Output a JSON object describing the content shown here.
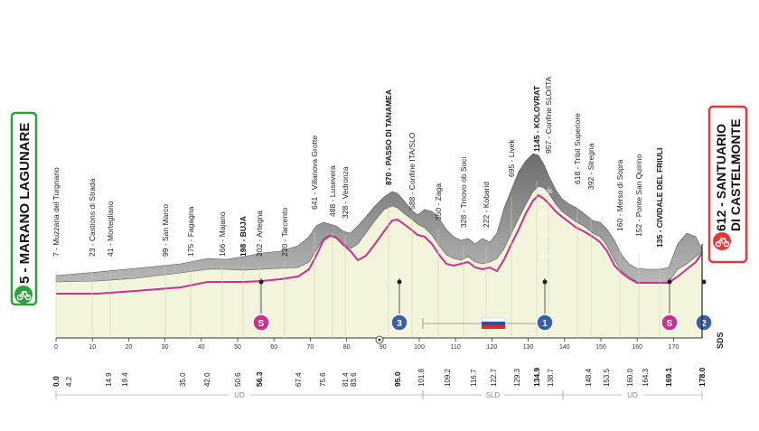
{
  "start": {
    "label": "5 - MARANO LAGUNARE",
    "color": "#2e9e3e"
  },
  "finish": {
    "label_line1": "612 - SANTUARIO",
    "label_line2": "DI CASTELMONTE",
    "color": "#e03a3a"
  },
  "waypoints": [
    {
      "text": "7 - Muzzana del Turgnano",
      "bold": false
    },
    {
      "text": "23 - Castions di Strada",
      "bold": false
    },
    {
      "text": "41 - Mortegliano",
      "bold": false
    },
    {
      "text": "99 - San Marco",
      "bold": false
    },
    {
      "text": "175 - Fagagna",
      "bold": false
    },
    {
      "text": "166 - Majano",
      "bold": false
    },
    {
      "text": "198 - BUJA",
      "bold": true
    },
    {
      "text": "202 - Artegna",
      "bold": false
    },
    {
      "text": "230 - Tarcento",
      "bold": false
    },
    {
      "text": "641 - Villanova Grotte",
      "bold": false
    },
    {
      "text": "488 - Lusevera",
      "bold": false
    },
    {
      "text": "328 - Vedronza",
      "bold": false
    },
    {
      "text": "870 - PASSO DI TANAMEA",
      "bold": true
    },
    {
      "text": "588 - Confine ITA/SLO",
      "bold": false
    },
    {
      "text": "350 - Zaga",
      "bold": false
    },
    {
      "text": "328 - Trnovo ob Soci",
      "bold": false
    },
    {
      "text": "222 - Kobarid",
      "bold": false
    },
    {
      "text": "695 - Livek",
      "bold": false
    },
    {
      "text": "1145 - KOLOVRAT",
      "bold": true
    },
    {
      "text": "957 - Confine SLO/ITA",
      "bold": false
    },
    {
      "text": "618 - Tribil Superiore",
      "bold": false
    },
    {
      "text": "392 - Stregna",
      "bold": false
    },
    {
      "text": "160 - Merso di Sopra",
      "bold": false
    },
    {
      "text": "152 - Ponte San Quirino",
      "bold": false
    },
    {
      "text": "135 - CIVIDALE DEL FRIULI",
      "bold": true
    }
  ],
  "km_labels": [
    {
      "text": "0.0",
      "bold": true
    },
    {
      "text": "4.2",
      "bold": false
    },
    {
      "text": "14.9",
      "bold": false
    },
    {
      "text": "19.4",
      "bold": false
    },
    {
      "text": "35.0",
      "bold": false
    },
    {
      "text": "42.0",
      "bold": false
    },
    {
      "text": "50.6",
      "bold": false
    },
    {
      "text": "56.3",
      "bold": true
    },
    {
      "text": "67.4",
      "bold": false
    },
    {
      "text": "75.6",
      "bold": false
    },
    {
      "text": "81.4",
      "bold": false
    },
    {
      "text": "83.6",
      "bold": false
    },
    {
      "text": "95.0",
      "bold": true
    },
    {
      "text": "101.8",
      "bold": false
    },
    {
      "text": "109.2",
      "bold": false
    },
    {
      "text": "116.7",
      "bold": false
    },
    {
      "text": "122.7",
      "bold": false
    },
    {
      "text": "129.3",
      "bold": false
    },
    {
      "text": "134.9",
      "bold": true
    },
    {
      "text": "138.7",
      "bold": false
    },
    {
      "text": "148.4",
      "bold": false
    },
    {
      "text": "153.5",
      "bold": false
    },
    {
      "text": "160.0",
      "bold": false
    },
    {
      "text": "164.3",
      "bold": false
    },
    {
      "text": "169.1",
      "bold": true
    },
    {
      "text": "178.0",
      "bold": true
    }
  ],
  "distance_axis": [
    "0",
    "10",
    "20",
    "30",
    "40",
    "50",
    "60",
    "70",
    "80",
    "90",
    "100",
    "110",
    "120",
    "130",
    "140",
    "150",
    "160",
    "170"
  ],
  "altitude_scale": [
    "1000",
    "800",
    "600",
    "400",
    "200"
  ],
  "markers": [
    {
      "label": "S",
      "type": "sprint"
    },
    {
      "label": "3",
      "type": "gpm"
    },
    {
      "label": "1",
      "type": "gpm"
    },
    {
      "label": "S",
      "type": "sprint"
    },
    {
      "label": "2",
      "type": "gpm"
    }
  ],
  "regions": [
    "UD",
    "SLD",
    "UD"
  ],
  "sds": "SDS",
  "colors": {
    "profile_fill": "#f2f4dc",
    "road": "#8a8a8a",
    "profile_line": "#c8318e",
    "sprint": "#c8318e",
    "gpm": "#3b5fa6",
    "start": "#2e9e3e",
    "finish": "#e03a3a"
  }
}
